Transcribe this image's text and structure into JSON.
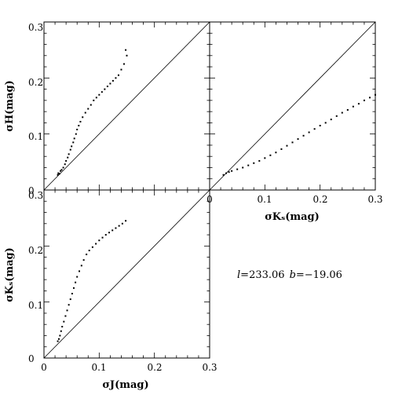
{
  "figure": {
    "annotation": {
      "l_symbol": "l",
      "l_value": "=233.06",
      "b_symbol": "b",
      "b_value": "=−19.06"
    }
  },
  "chart_data": [
    {
      "id": "panel-h-vs-j",
      "type": "scatter",
      "xlabel": "",
      "ylabel": "σH(mag)",
      "xlim": [
        0,
        0.3
      ],
      "ylim": [
        0,
        0.3
      ],
      "x_ticks": [],
      "y_ticks": [
        "0",
        "0.1",
        "0.2",
        "0.3"
      ],
      "reference_line": "y = x",
      "series": [
        {
          "points": [
            [
              0.025,
              0.027
            ],
            [
              0.026,
              0.03
            ],
            [
              0.028,
              0.029
            ],
            [
              0.03,
              0.034
            ],
            [
              0.032,
              0.036
            ],
            [
              0.035,
              0.04
            ],
            [
              0.038,
              0.046
            ],
            [
              0.04,
              0.052
            ],
            [
              0.043,
              0.058
            ],
            [
              0.045,
              0.064
            ],
            [
              0.048,
              0.072
            ],
            [
              0.05,
              0.078
            ],
            [
              0.053,
              0.085
            ],
            [
              0.055,
              0.092
            ],
            [
              0.058,
              0.1
            ],
            [
              0.06,
              0.108
            ],
            [
              0.063,
              0.115
            ],
            [
              0.066,
              0.122
            ],
            [
              0.07,
              0.13
            ],
            [
              0.075,
              0.138
            ],
            [
              0.08,
              0.145
            ],
            [
              0.085,
              0.152
            ],
            [
              0.09,
              0.16
            ],
            [
              0.095,
              0.165
            ],
            [
              0.1,
              0.17
            ],
            [
              0.105,
              0.175
            ],
            [
              0.11,
              0.18
            ],
            [
              0.115,
              0.185
            ],
            [
              0.12,
              0.19
            ],
            [
              0.125,
              0.195
            ],
            [
              0.13,
              0.2
            ],
            [
              0.135,
              0.205
            ],
            [
              0.14,
              0.215
            ],
            [
              0.145,
              0.225
            ],
            [
              0.15,
              0.24
            ],
            [
              0.148,
              0.25
            ]
          ]
        }
      ]
    },
    {
      "id": "panel-h-vs-ks",
      "type": "scatter",
      "xlabel": "σKₛ(mag)",
      "ylabel": "",
      "xlim": [
        0,
        0.3
      ],
      "ylim": [
        0,
        0.3
      ],
      "x_ticks": [
        "0",
        "0.1",
        "0.2",
        "0.3"
      ],
      "y_ticks": [],
      "reference_line": "y = x",
      "series": [
        {
          "points": [
            [
              0.025,
              0.027
            ],
            [
              0.03,
              0.03
            ],
            [
              0.035,
              0.032
            ],
            [
              0.04,
              0.034
            ],
            [
              0.05,
              0.037
            ],
            [
              0.06,
              0.04
            ],
            [
              0.07,
              0.044
            ],
            [
              0.08,
              0.048
            ],
            [
              0.09,
              0.052
            ],
            [
              0.1,
              0.057
            ],
            [
              0.11,
              0.062
            ],
            [
              0.12,
              0.067
            ],
            [
              0.13,
              0.073
            ],
            [
              0.14,
              0.079
            ],
            [
              0.15,
              0.085
            ],
            [
              0.16,
              0.091
            ],
            [
              0.17,
              0.097
            ],
            [
              0.18,
              0.103
            ],
            [
              0.19,
              0.109
            ],
            [
              0.2,
              0.115
            ],
            [
              0.21,
              0.12
            ],
            [
              0.22,
              0.126
            ],
            [
              0.23,
              0.132
            ],
            [
              0.24,
              0.138
            ],
            [
              0.25,
              0.143
            ],
            [
              0.26,
              0.149
            ],
            [
              0.27,
              0.154
            ],
            [
              0.28,
              0.16
            ],
            [
              0.29,
              0.165
            ],
            [
              0.3,
              0.17
            ]
          ]
        }
      ]
    },
    {
      "id": "panel-ks-vs-j",
      "type": "scatter",
      "xlabel": "σJ(mag)",
      "ylabel": "σKₛ(mag)",
      "xlim": [
        0,
        0.3
      ],
      "ylim": [
        0,
        0.3
      ],
      "x_ticks": [
        "0",
        "0.1",
        "0.2",
        "0.3"
      ],
      "y_ticks": [
        "0",
        "0.1",
        "0.2",
        "0.3"
      ],
      "reference_line": "y = x",
      "series": [
        {
          "points": [
            [
              0.025,
              0.03
            ],
            [
              0.027,
              0.034
            ],
            [
              0.029,
              0.04
            ],
            [
              0.031,
              0.048
            ],
            [
              0.033,
              0.056
            ],
            [
              0.036,
              0.065
            ],
            [
              0.039,
              0.075
            ],
            [
              0.042,
              0.085
            ],
            [
              0.045,
              0.095
            ],
            [
              0.048,
              0.105
            ],
            [
              0.051,
              0.115
            ],
            [
              0.054,
              0.125
            ],
            [
              0.057,
              0.135
            ],
            [
              0.06,
              0.145
            ],
            [
              0.064,
              0.155
            ],
            [
              0.068,
              0.165
            ],
            [
              0.072,
              0.175
            ],
            [
              0.077,
              0.185
            ],
            [
              0.082,
              0.192
            ],
            [
              0.088,
              0.198
            ],
            [
              0.094,
              0.204
            ],
            [
              0.1,
              0.21
            ],
            [
              0.106,
              0.215
            ],
            [
              0.112,
              0.22
            ],
            [
              0.118,
              0.224
            ],
            [
              0.124,
              0.228
            ],
            [
              0.13,
              0.232
            ],
            [
              0.136,
              0.236
            ],
            [
              0.142,
              0.24
            ],
            [
              0.148,
              0.245
            ]
          ]
        }
      ]
    }
  ]
}
